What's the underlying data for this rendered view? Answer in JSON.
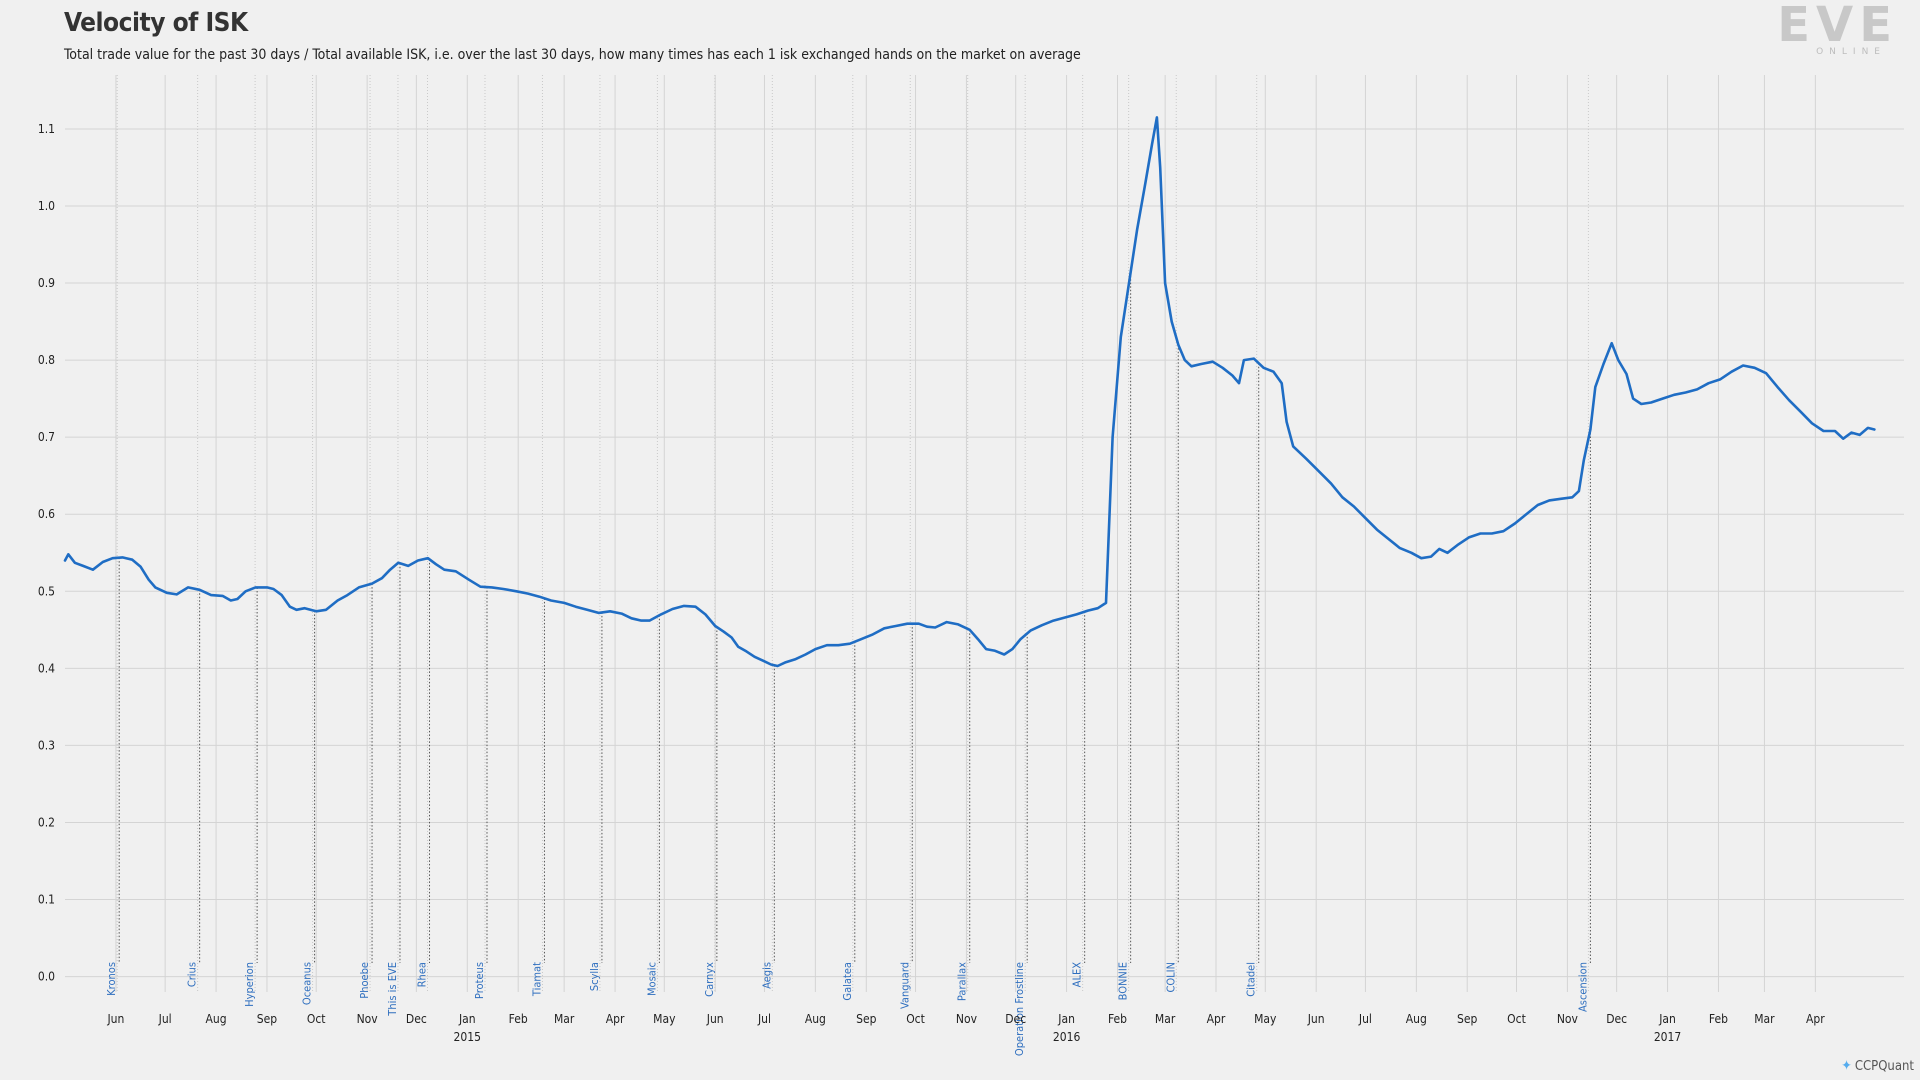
{
  "header": {
    "title": "Velocity of ISK",
    "subtitle": "Total trade value for the past 30 days / Total available ISK, i.e. over the last 30 days, how many times has each 1 isk exchanged hands on the market on average"
  },
  "logo": {
    "word": "EVE",
    "sub": "ONLINE"
  },
  "credit": {
    "text": "CCPQuant",
    "icon": "twitter-bird-icon"
  },
  "colors": {
    "line": "#1f6dc4",
    "grid": "#d4d4d4",
    "event": "#2f6fbf",
    "background": "#f0f0f0"
  },
  "chart_data": {
    "type": "line",
    "title": "Velocity of ISK",
    "xlabel": "",
    "ylabel": "",
    "xlim": [
      "2014-05-01",
      "2017-05-25"
    ],
    "ylim": [
      -0.02,
      1.17
    ],
    "yticks": [
      "0.0",
      "0.1",
      "0.2",
      "0.3",
      "0.4",
      "0.5",
      "0.6",
      "0.7",
      "0.8",
      "0.9",
      "1.0",
      "1.1"
    ],
    "month_ticks": [
      {
        "date": "2014-06-01",
        "label": "Jun"
      },
      {
        "date": "2014-07-01",
        "label": "Jul"
      },
      {
        "date": "2014-08-01",
        "label": "Aug"
      },
      {
        "date": "2014-09-01",
        "label": "Sep"
      },
      {
        "date": "2014-10-01",
        "label": "Oct"
      },
      {
        "date": "2014-11-01",
        "label": "Nov"
      },
      {
        "date": "2014-12-01",
        "label": "Dec"
      },
      {
        "date": "2015-01-01",
        "label": "Jan",
        "year": "2015"
      },
      {
        "date": "2015-02-01",
        "label": "Feb"
      },
      {
        "date": "2015-03-01",
        "label": "Mar"
      },
      {
        "date": "2015-04-01",
        "label": "Apr"
      },
      {
        "date": "2015-05-01",
        "label": "May"
      },
      {
        "date": "2015-06-01",
        "label": "Jun"
      },
      {
        "date": "2015-07-01",
        "label": "Jul"
      },
      {
        "date": "2015-08-01",
        "label": "Aug"
      },
      {
        "date": "2015-09-01",
        "label": "Sep"
      },
      {
        "date": "2015-10-01",
        "label": "Oct"
      },
      {
        "date": "2015-11-01",
        "label": "Nov"
      },
      {
        "date": "2015-12-01",
        "label": "Dec"
      },
      {
        "date": "2016-01-01",
        "label": "Jan",
        "year": "2016"
      },
      {
        "date": "2016-02-01",
        "label": "Feb"
      },
      {
        "date": "2016-03-01",
        "label": "Mar"
      },
      {
        "date": "2016-04-01",
        "label": "Apr"
      },
      {
        "date": "2016-05-01",
        "label": "May"
      },
      {
        "date": "2016-06-01",
        "label": "Jun"
      },
      {
        "date": "2016-07-01",
        "label": "Jul"
      },
      {
        "date": "2016-08-01",
        "label": "Aug"
      },
      {
        "date": "2016-09-01",
        "label": "Sep"
      },
      {
        "date": "2016-10-01",
        "label": "Oct"
      },
      {
        "date": "2016-11-01",
        "label": "Nov"
      },
      {
        "date": "2016-12-01",
        "label": "Dec"
      },
      {
        "date": "2017-01-01",
        "label": "Jan",
        "year": "2017"
      },
      {
        "date": "2017-02-01",
        "label": "Feb"
      },
      {
        "date": "2017-03-01",
        "label": "Mar"
      },
      {
        "date": "2017-04-01",
        "label": "Apr"
      }
    ],
    "events": [
      {
        "date": "2014-06-03",
        "label": "Kronos"
      },
      {
        "date": "2014-07-22",
        "label": "Crius"
      },
      {
        "date": "2014-08-26",
        "label": "Hyperion"
      },
      {
        "date": "2014-09-30",
        "label": "Oceanus"
      },
      {
        "date": "2014-11-04",
        "label": "Phoebe"
      },
      {
        "date": "2014-11-21",
        "label": "This is EVE"
      },
      {
        "date": "2014-12-09",
        "label": "Rhea"
      },
      {
        "date": "2015-01-13",
        "label": "Proteus"
      },
      {
        "date": "2015-02-17",
        "label": "Tiamat"
      },
      {
        "date": "2015-03-24",
        "label": "Scylla"
      },
      {
        "date": "2015-04-28",
        "label": "Mosaic"
      },
      {
        "date": "2015-06-02",
        "label": "Carnyx"
      },
      {
        "date": "2015-07-07",
        "label": "Aegis"
      },
      {
        "date": "2015-08-25",
        "label": "Galatea"
      },
      {
        "date": "2015-09-29",
        "label": "Vanguard"
      },
      {
        "date": "2015-11-03",
        "label": "Parallax"
      },
      {
        "date": "2015-12-08",
        "label": "Operation Frostline"
      },
      {
        "date": "2016-01-12",
        "label": "ALEX"
      },
      {
        "date": "2016-02-09",
        "label": "BONNIE"
      },
      {
        "date": "2016-03-09",
        "label": "COLIN"
      },
      {
        "date": "2016-04-27",
        "label": "Citadel"
      },
      {
        "date": "2016-11-15",
        "label": "Ascension"
      }
    ],
    "series": [
      {
        "values": [
          [
            "2014-05-01",
            0.54
          ],
          [
            "2014-05-03",
            0.548
          ],
          [
            "2014-05-07",
            0.537
          ],
          [
            "2014-05-12",
            0.533
          ],
          [
            "2014-05-18",
            0.528
          ],
          [
            "2014-05-24",
            0.538
          ],
          [
            "2014-05-30",
            0.543
          ],
          [
            "2014-06-05",
            0.544
          ],
          [
            "2014-06-11",
            0.541
          ],
          [
            "2014-06-16",
            0.532
          ],
          [
            "2014-06-21",
            0.515
          ],
          [
            "2014-06-25",
            0.505
          ],
          [
            "2014-07-02",
            0.498
          ],
          [
            "2014-07-08",
            0.496
          ],
          [
            "2014-07-15",
            0.505
          ],
          [
            "2014-07-22",
            0.502
          ],
          [
            "2014-07-29",
            0.495
          ],
          [
            "2014-08-05",
            0.494
          ],
          [
            "2014-08-10",
            0.488
          ],
          [
            "2014-08-14",
            0.49
          ],
          [
            "2014-08-19",
            0.5
          ],
          [
            "2014-08-25",
            0.505
          ],
          [
            "2014-09-01",
            0.505
          ],
          [
            "2014-09-05",
            0.503
          ],
          [
            "2014-09-10",
            0.495
          ],
          [
            "2014-09-15",
            0.48
          ],
          [
            "2014-09-19",
            0.476
          ],
          [
            "2014-09-24",
            0.478
          ],
          [
            "2014-10-01",
            0.474
          ],
          [
            "2014-10-07",
            0.476
          ],
          [
            "2014-10-14",
            0.488
          ],
          [
            "2014-10-20",
            0.495
          ],
          [
            "2014-10-27",
            0.505
          ],
          [
            "2014-11-04",
            0.51
          ],
          [
            "2014-11-10",
            0.517
          ],
          [
            "2014-11-15",
            0.528
          ],
          [
            "2014-11-20",
            0.537
          ],
          [
            "2014-11-26",
            0.533
          ],
          [
            "2014-12-02",
            0.54
          ],
          [
            "2014-12-08",
            0.543
          ],
          [
            "2014-12-13",
            0.535
          ],
          [
            "2014-12-18",
            0.528
          ],
          [
            "2014-12-25",
            0.526
          ],
          [
            "2015-01-02",
            0.515
          ],
          [
            "2015-01-09",
            0.506
          ],
          [
            "2015-01-16",
            0.505
          ],
          [
            "2015-01-23",
            0.503
          ],
          [
            "2015-01-31",
            0.5
          ],
          [
            "2015-02-07",
            0.497
          ],
          [
            "2015-02-14",
            0.493
          ],
          [
            "2015-02-21",
            0.488
          ],
          [
            "2015-03-01",
            0.485
          ],
          [
            "2015-03-08",
            0.48
          ],
          [
            "2015-03-15",
            0.476
          ],
          [
            "2015-03-22",
            0.472
          ],
          [
            "2015-03-29",
            0.474
          ],
          [
            "2015-04-05",
            0.471
          ],
          [
            "2015-04-11",
            0.465
          ],
          [
            "2015-04-17",
            0.462
          ],
          [
            "2015-04-22",
            0.462
          ],
          [
            "2015-04-29",
            0.47
          ],
          [
            "2015-05-06",
            0.477
          ],
          [
            "2015-05-13",
            0.481
          ],
          [
            "2015-05-20",
            0.48
          ],
          [
            "2015-05-26",
            0.47
          ],
          [
            "2015-06-01",
            0.455
          ],
          [
            "2015-06-06",
            0.448
          ],
          [
            "2015-06-11",
            0.44
          ],
          [
            "2015-06-15",
            0.428
          ],
          [
            "2015-06-20",
            0.422
          ],
          [
            "2015-06-25",
            0.415
          ],
          [
            "2015-06-30",
            0.41
          ],
          [
            "2015-07-05",
            0.405
          ],
          [
            "2015-07-09",
            0.403
          ],
          [
            "2015-07-14",
            0.408
          ],
          [
            "2015-07-20",
            0.412
          ],
          [
            "2015-07-26",
            0.418
          ],
          [
            "2015-08-01",
            0.425
          ],
          [
            "2015-08-08",
            0.43
          ],
          [
            "2015-08-15",
            0.43
          ],
          [
            "2015-08-22",
            0.432
          ],
          [
            "2015-08-29",
            0.438
          ],
          [
            "2015-09-05",
            0.444
          ],
          [
            "2015-09-12",
            0.452
          ],
          [
            "2015-09-19",
            0.455
          ],
          [
            "2015-09-26",
            0.458
          ],
          [
            "2015-10-03",
            0.458
          ],
          [
            "2015-10-08",
            0.454
          ],
          [
            "2015-10-13",
            0.453
          ],
          [
            "2015-10-20",
            0.46
          ],
          [
            "2015-10-27",
            0.457
          ],
          [
            "2015-11-03",
            0.45
          ],
          [
            "2015-11-08",
            0.438
          ],
          [
            "2015-11-13",
            0.425
          ],
          [
            "2015-11-18",
            0.423
          ],
          [
            "2015-11-24",
            0.418
          ],
          [
            "2015-11-29",
            0.425
          ],
          [
            "2015-12-04",
            0.438
          ],
          [
            "2015-12-10",
            0.449
          ],
          [
            "2015-12-17",
            0.456
          ],
          [
            "2015-12-24",
            0.462
          ],
          [
            "2015-12-31",
            0.466
          ],
          [
            "2016-01-07",
            0.47
          ],
          [
            "2016-01-14",
            0.475
          ],
          [
            "2016-01-20",
            0.478
          ],
          [
            "2016-01-25",
            0.485
          ],
          [
            "2016-01-29",
            0.7
          ],
          [
            "2016-02-03",
            0.83
          ],
          [
            "2016-02-08",
            0.9
          ],
          [
            "2016-02-13",
            0.97
          ],
          [
            "2016-02-18",
            1.03
          ],
          [
            "2016-02-22",
            1.08
          ],
          [
            "2016-02-25",
            1.115
          ],
          [
            "2016-02-27",
            1.05
          ],
          [
            "2016-03-01",
            0.9
          ],
          [
            "2016-03-05",
            0.85
          ],
          [
            "2016-03-09",
            0.82
          ],
          [
            "2016-03-13",
            0.8
          ],
          [
            "2016-03-17",
            0.792
          ],
          [
            "2016-03-23",
            0.795
          ],
          [
            "2016-03-30",
            0.798
          ],
          [
            "2016-04-05",
            0.79
          ],
          [
            "2016-04-11",
            0.78
          ],
          [
            "2016-04-15",
            0.77
          ],
          [
            "2016-04-18",
            0.8
          ],
          [
            "2016-04-24",
            0.802
          ],
          [
            "2016-04-30",
            0.79
          ],
          [
            "2016-05-06",
            0.785
          ],
          [
            "2016-05-11",
            0.77
          ],
          [
            "2016-05-14",
            0.72
          ],
          [
            "2016-05-18",
            0.688
          ],
          [
            "2016-05-26",
            0.672
          ],
          [
            "2016-06-03",
            0.655
          ],
          [
            "2016-06-10",
            0.64
          ],
          [
            "2016-06-17",
            0.622
          ],
          [
            "2016-06-24",
            0.61
          ],
          [
            "2016-07-01",
            0.595
          ],
          [
            "2016-07-08",
            0.58
          ],
          [
            "2016-07-15",
            0.568
          ],
          [
            "2016-07-22",
            0.556
          ],
          [
            "2016-07-29",
            0.55
          ],
          [
            "2016-08-04",
            0.543
          ],
          [
            "2016-08-10",
            0.545
          ],
          [
            "2016-08-15",
            0.555
          ],
          [
            "2016-08-20",
            0.55
          ],
          [
            "2016-08-26",
            0.56
          ],
          [
            "2016-09-02",
            0.57
          ],
          [
            "2016-09-09",
            0.575
          ],
          [
            "2016-09-16",
            0.575
          ],
          [
            "2016-09-23",
            0.578
          ],
          [
            "2016-09-30",
            0.588
          ],
          [
            "2016-10-07",
            0.6
          ],
          [
            "2016-10-14",
            0.612
          ],
          [
            "2016-10-21",
            0.618
          ],
          [
            "2016-10-28",
            0.62
          ],
          [
            "2016-11-04",
            0.622
          ],
          [
            "2016-11-08",
            0.63
          ],
          [
            "2016-11-11",
            0.67
          ],
          [
            "2016-11-15",
            0.71
          ],
          [
            "2016-11-18",
            0.765
          ],
          [
            "2016-11-23",
            0.795
          ],
          [
            "2016-11-28",
            0.822
          ],
          [
            "2016-12-02",
            0.8
          ],
          [
            "2016-12-07",
            0.782
          ],
          [
            "2016-12-11",
            0.75
          ],
          [
            "2016-12-16",
            0.743
          ],
          [
            "2016-12-22",
            0.745
          ],
          [
            "2016-12-29",
            0.75
          ],
          [
            "2017-01-05",
            0.755
          ],
          [
            "2017-01-12",
            0.758
          ],
          [
            "2017-01-19",
            0.762
          ],
          [
            "2017-01-26",
            0.77
          ],
          [
            "2017-02-02",
            0.775
          ],
          [
            "2017-02-09",
            0.785
          ],
          [
            "2017-02-16",
            0.793
          ],
          [
            "2017-02-23",
            0.79
          ],
          [
            "2017-03-02",
            0.783
          ],
          [
            "2017-03-09",
            0.765
          ],
          [
            "2017-03-16",
            0.748
          ],
          [
            "2017-03-23",
            0.733
          ],
          [
            "2017-03-30",
            0.718
          ],
          [
            "2017-04-06",
            0.708
          ],
          [
            "2017-04-13",
            0.708
          ],
          [
            "2017-04-18",
            0.698
          ],
          [
            "2017-04-23",
            0.706
          ],
          [
            "2017-04-28",
            0.703
          ],
          [
            "2017-05-03",
            0.712
          ],
          [
            "2017-05-07",
            0.71
          ]
        ]
      }
    ]
  }
}
